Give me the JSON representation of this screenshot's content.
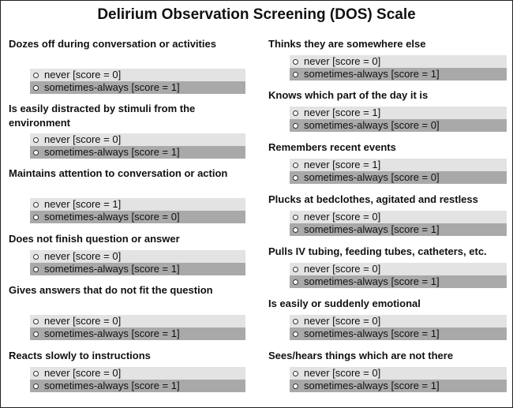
{
  "title": "Delirium Observation Screening (DOS) Scale",
  "left": [
    {
      "question": "Dozes off during conversation or activities",
      "options": [
        "never [score = 0]",
        "sometimes-always [score = 1]"
      ]
    },
    {
      "question": "Is easily distracted by stimuli from the environment",
      "options": [
        "never [score = 0]",
        "sometimes-always [score = 1]"
      ]
    },
    {
      "question": "Maintains attention to conversation or action",
      "options": [
        "never [score = 1]",
        "sometimes-always [score = 0]"
      ]
    },
    {
      "question": "Does not finish question or answer",
      "options": [
        "never [score = 0]",
        "sometimes-always [score = 1]"
      ]
    },
    {
      "question": "Gives answers that do not fit the question",
      "options": [
        "never [score = 0]",
        "sometimes-always [score = 1]"
      ]
    },
    {
      "question": "Reacts slowly to instructions",
      "options": [
        "never [score = 0]",
        "sometimes-always [score = 1]"
      ]
    }
  ],
  "right": [
    {
      "question": "Thinks they are somewhere else",
      "options": [
        "never [score = 0]",
        "sometimes-always [score = 1]"
      ]
    },
    {
      "question": "Knows which part of the day it is",
      "options": [
        "never [score = 1]",
        "sometimes-always [score = 0]"
      ]
    },
    {
      "question": "Remembers recent events",
      "options": [
        "never [score = 1]",
        "sometimes-always [score = 0]"
      ]
    },
    {
      "question": "Plucks at bedclothes, agitated and restless",
      "options": [
        "never [score = 0]",
        "sometimes-always [score = 1]"
      ]
    },
    {
      "question": "Pulls IV tubing, feeding tubes, catheters, etc.",
      "options": [
        "never [score = 0]",
        "sometimes-always [score = 1]"
      ]
    },
    {
      "question": "Is easily or suddenly emotional",
      "options": [
        "never [score = 0]",
        "sometimes-always [score = 1]"
      ]
    },
    {
      "question": "Sees/hears things which are not there",
      "options": [
        "never [score = 0]",
        "sometimes-always [score = 1]"
      ]
    }
  ]
}
